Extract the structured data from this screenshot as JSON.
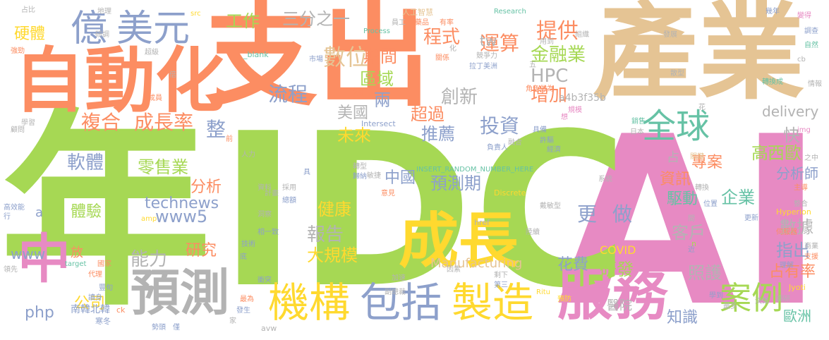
{
  "palette": {
    "orange": "#fc8d62",
    "green": "#a6d854",
    "pink": "#e78ac3",
    "tan": "#e5c494",
    "yellow": "#ffd92f",
    "blue": "#8da0cb",
    "teal": "#66c2a5",
    "gray": "#b3b3b3"
  },
  "words": [
    {
      "text": "支出",
      "color": "#fc8d62"
    },
    {
      "text": "AI",
      "color": "#e78ac3"
    },
    {
      "text": "IDC",
      "color": "#a6d854"
    },
    {
      "text": "年",
      "color": "#a6d854"
    },
    {
      "text": "產業",
      "color": "#e5c494"
    },
    {
      "text": "自動化",
      "color": "#fc8d62"
    },
    {
      "text": "成長",
      "color": "#ffd92f"
    },
    {
      "text": "服務",
      "color": "#e78ac3"
    },
    {
      "text": "預測",
      "color": "#b3b3b3"
    },
    {
      "text": "億",
      "color": "#8da0cb"
    },
    {
      "text": "美元",
      "color": "#8da0cb"
    },
    {
      "text": "中",
      "color": "#e78ac3"
    },
    {
      "text": "機構",
      "color": "#ffd92f"
    },
    {
      "text": "包括",
      "color": "#8da0cb"
    },
    {
      "text": "製造",
      "color": "#ffd92f"
    },
    {
      "text": "全球",
      "color": "#66c2a5"
    },
    {
      "text": "案例",
      "color": "#a6d854"
    },
    {
      "text": "成長率",
      "color": "#fc8d62"
    },
    {
      "text": "複合",
      "color": "#fc8d62"
    },
    {
      "text": "數位",
      "color": "#e5c494"
    },
    {
      "text": "流程",
      "color": "#8da0cb"
    },
    {
      "text": "提供",
      "color": "#fc8d62"
    },
    {
      "text": "運算",
      "color": "#fc8d62"
    },
    {
      "text": "金融業",
      "color": "#a6d854"
    },
    {
      "text": "HPC",
      "color": "#b3b3b3"
    },
    {
      "text": "增加",
      "color": "#fc8d62"
    },
    {
      "text": "期間",
      "color": "#fc8d62"
    },
    {
      "text": "程式",
      "color": "#fc8d62"
    },
    {
      "text": "區域",
      "color": "#a6d854"
    },
    {
      "text": "工作",
      "color": "#a6d854"
    },
    {
      "text": "三分之一",
      "color": "#b3b3b3"
    },
    {
      "text": "tw",
      "color": "#b3b3b3"
    },
    {
      "text": "硬體",
      "color": "#ffd92f"
    },
    {
      "text": "創新",
      "color": "#b3b3b3"
    },
    {
      "text": "超過",
      "color": "#fc8d62"
    },
    {
      "text": "推薦",
      "color": "#8da0cb"
    },
    {
      "text": "投資",
      "color": "#8da0cb"
    },
    {
      "text": "未來",
      "color": "#ffd92f"
    },
    {
      "text": "美國",
      "color": "#b3b3b3"
    },
    {
      "text": "兩",
      "color": "#8da0cb"
    },
    {
      "text": "整",
      "color": "#8da0cb"
    },
    {
      "text": "軟體",
      "color": "#8da0cb"
    },
    {
      "text": "零售業",
      "color": "#a6d854"
    },
    {
      "text": "中國",
      "color": "#8da0cb"
    },
    {
      "text": "預測期",
      "color": "#8da0cb"
    },
    {
      "text": "分析",
      "color": "#fc8d62"
    },
    {
      "text": "technews",
      "color": "#8da0cb"
    },
    {
      "text": "www5",
      "color": "#8da0cb"
    },
    {
      "text": "體驗",
      "color": "#a6d854"
    },
    {
      "text": "健康",
      "color": "#ffd92f"
    },
    {
      "text": "報告",
      "color": "#b3b3b3"
    },
    {
      "text": "能力",
      "color": "#b3b3b3"
    },
    {
      "text": "大規模",
      "color": "#ffd92f"
    },
    {
      "text": "研究",
      "color": "#fc8d62"
    },
    {
      "text": "www",
      "color": "#8da0cb"
    },
    {
      "text": "php",
      "color": "#8da0cb"
    },
    {
      "text": "公司",
      "color": "#ffd92f"
    },
    {
      "text": "放",
      "color": "#fc8d62"
    },
    {
      "text": "Manufacturing",
      "color": "#e5c494"
    },
    {
      "text": "COVID",
      "color": "#ffd92f"
    },
    {
      "text": "花費",
      "color": "#8da0cb"
    },
    {
      "text": "研發",
      "color": "#a6d854"
    },
    {
      "text": "更",
      "color": "#8da0cb"
    },
    {
      "text": "做",
      "color": "#8da0cb"
    },
    {
      "text": "客戶",
      "color": "#b3b3b3"
    },
    {
      "text": "駆動",
      "color": "#66c2a5"
    },
    {
      "text": "資訊",
      "color": "#fc8d62"
    },
    {
      "text": "企業",
      "color": "#66c2a5"
    },
    {
      "text": "數據",
      "color": "#b3b3b3"
    },
    {
      "text": "指出",
      "color": "#8da0cb"
    },
    {
      "text": "占有率",
      "color": "#fc8d62"
    },
    {
      "text": "照護",
      "color": "#b3b3b3"
    },
    {
      "text": "知識",
      "color": "#8da0cb"
    },
    {
      "text": "醫院",
      "color": "#b3b3b3"
    },
    {
      "text": "歐洲",
      "color": "#66c2a5"
    },
    {
      "text": "高",
      "color": "#a6d854"
    },
    {
      "text": "西歐",
      "color": "#a6d854"
    },
    {
      "text": "專案",
      "color": "#fc8d62"
    },
    {
      "text": "分析師",
      "color": "#8da0cb"
    },
    {
      "text": "快",
      "color": "#b3b3b3"
    },
    {
      "text": "delivery",
      "color": "#b3b3b3"
    },
    {
      "text": "占",
      "color": "#b3b3b3"
    },
    {
      "text": "a",
      "color": "#8da0cb"
    },
    {
      "text": "南韓北韓",
      "color": "#8da0cb"
    },
    {
      "text": "a4b3f35b",
      "color": "#b3b3b3"
    },
    {
      "text": "INSERT_RANDOM_NUMBER_HERE",
      "color": "#66c2a5"
    },
    {
      "text": "_blank",
      "color": "#66c2a5"
    },
    {
      "text": "Research",
      "color": "#66c2a5"
    },
    {
      "text": "人工智慧",
      "color": "#e5c494"
    },
    {
      "text": "Process",
      "color": "#66c2a5"
    },
    {
      "text": "研調",
      "color": "#b3b3b3"
    },
    {
      "text": "Intersect",
      "color": "#8da0cb"
    },
    {
      "text": "Discrete",
      "color": "#ffd92f"
    },
    {
      "text": "href",
      "color": "#b3b3b3"
    },
    {
      "text": "Hyperion",
      "color": "#ffd92f"
    },
    {
      "text": "Jyoti",
      "color": "#ffd92f"
    },
    {
      "text": "Ritu",
      "color": "#ffd92f"
    },
    {
      "text": "img",
      "color": "#e78ac3"
    },
    {
      "text": "cb",
      "color": "#b3b3b3"
    },
    {
      "text": "target",
      "color": "#66c2a5"
    },
    {
      "text": "amp",
      "color": "#ffd92f"
    },
    {
      "text": "avw",
      "color": "#b3b3b3"
    },
    {
      "text": "src",
      "color": "#ffd92f"
    },
    {
      "text": "ck",
      "color": "#fc8d62"
    },
    {
      "text": "n",
      "color": "#a6d854"
    },
    {
      "text": "占比",
      "color": "#b3b3b3"
    },
    {
      "text": "地理",
      "color": "#b3b3b3"
    },
    {
      "text": "強勁",
      "color": "#fc8d62"
    },
    {
      "text": "超級",
      "color": "#b3b3b3"
    },
    {
      "text": "倍",
      "color": "#b3b3b3"
    },
    {
      "text": "成員",
      "color": "#fc8d62"
    },
    {
      "text": "學習",
      "color": "#b3b3b3"
    },
    {
      "text": "顧問",
      "color": "#b3b3b3"
    },
    {
      "text": "高效能",
      "color": "#8da0cb"
    },
    {
      "text": "行",
      "color": "#8da0cb"
    },
    {
      "text": "領先",
      "color": "#b3b3b3"
    },
    {
      "text": "代理",
      "color": "#fc8d62"
    },
    {
      "text": "寒冬",
      "color": "#8da0cb"
    },
    {
      "text": "勢頭",
      "color": "#8da0cb"
    },
    {
      "text": "僅",
      "color": "#8da0cb"
    },
    {
      "text": "市場",
      "color": "#8da0cb"
    },
    {
      "text": "員工",
      "color": "#b3b3b3"
    },
    {
      "text": "有率",
      "color": "#fc8d62"
    },
    {
      "text": "藥品",
      "color": "#fc8d62"
    },
    {
      "text": "競爭力",
      "color": "#b3b3b3"
    },
    {
      "text": "關係",
      "color": "#fc8d62"
    },
    {
      "text": "拉丁美洲",
      "color": "#8da0cb"
    },
    {
      "text": "化",
      "color": "#b3b3b3"
    },
    {
      "text": "用到",
      "color": "#b3b3b3"
    },
    {
      "text": "組織",
      "color": "#b3b3b3"
    },
    {
      "text": "幾年",
      "color": "#8da0cb"
    },
    {
      "text": "變得",
      "color": "#e78ac3"
    },
    {
      "text": "調查",
      "color": "#8da0cb"
    },
    {
      "text": "自然",
      "color": "#66c2a5"
    },
    {
      "text": "發展",
      "color": "#b3b3b3"
    },
    {
      "text": "轉換成",
      "color": "#66c2a5"
    },
    {
      "text": "情報",
      "color": "#b3b3b3"
    },
    {
      "text": "散型",
      "color": "#b3b3b3"
    },
    {
      "text": "角色",
      "color": "#fc8d62"
    },
    {
      "text": "做為",
      "color": "#fc8d62"
    },
    {
      "text": "規模",
      "color": "#e78ac3"
    },
    {
      "text": "想",
      "color": "#e78ac3"
    },
    {
      "text": "花",
      "color": "#b3b3b3"
    },
    {
      "text": "銷售",
      "color": "#66c2a5"
    },
    {
      "text": "日本",
      "color": "#b3b3b3"
    },
    {
      "text": "具備",
      "color": "#8da0cb"
    },
    {
      "text": "許驅",
      "color": "#8da0cb"
    },
    {
      "text": "經濟",
      "color": "#8da0cb"
    },
    {
      "text": "關鍵",
      "color": "#e5c494"
    },
    {
      "text": "之中",
      "color": "#b3b3b3"
    },
    {
      "text": "主導",
      "color": "#fc8d62"
    },
    {
      "text": "整合",
      "color": "#b3b3b3"
    },
    {
      "text": "系統",
      "color": "#b3b3b3"
    },
    {
      "text": "轉換",
      "color": "#b3b3b3"
    },
    {
      "text": "位置",
      "color": "#8da0cb"
    },
    {
      "text": "更新",
      "color": "#8da0cb"
    },
    {
      "text": "伺服器",
      "color": "#fc8d62"
    },
    {
      "text": "近",
      "color": "#8da0cb"
    },
    {
      "text": "商業",
      "color": "#b3b3b3"
    },
    {
      "text": "支援",
      "color": "#fc8d62"
    },
    {
      "text": "理解",
      "color": "#8da0cb"
    },
    {
      "text": "學到",
      "color": "#8da0cb"
    },
    {
      "text": "調研",
      "color": "#b3b3b3"
    },
    {
      "text": "最多",
      "color": "#b3b3b3"
    },
    {
      "text": "決策",
      "color": "#b3b3b3"
    },
    {
      "text": "預防",
      "color": "#ffd92f"
    },
    {
      "text": "第三",
      "color": "#8da0cb"
    },
    {
      "text": "剩下",
      "color": "#b3b3b3"
    },
    {
      "text": "陸續",
      "color": "#b3b3b3"
    },
    {
      "text": "戴敏型",
      "color": "#b3b3b3"
    },
    {
      "text": "融合",
      "color": "#b3b3b3"
    },
    {
      "text": "負責人",
      "color": "#8da0cb"
    },
    {
      "text": "敏捷",
      "color": "#b3b3b3"
    },
    {
      "text": "轉型",
      "color": "#b3b3b3"
    },
    {
      "text": "歸納",
      "color": "#8da0cb"
    },
    {
      "text": "意見",
      "color": "#fc8d62"
    },
    {
      "text": "因素",
      "color": "#b3b3b3"
    },
    {
      "text": "加速",
      "color": "#b3b3b3"
    },
    {
      "text": "副總裁",
      "color": "#b3b3b3"
    },
    {
      "text": "相一致",
      "color": "#8da0cb"
    },
    {
      "text": "洞察",
      "color": "#b3b3b3"
    },
    {
      "text": "計畫",
      "color": "#b3b3b3"
    },
    {
      "text": "採用",
      "color": "#b3b3b3"
    },
    {
      "text": "資料",
      "color": "#b3b3b3"
    },
    {
      "text": "總額",
      "color": "#8da0cb"
    },
    {
      "text": "具",
      "color": "#8da0cb"
    },
    {
      "text": "人力",
      "color": "#b3b3b3"
    },
    {
      "text": "前",
      "color": "#fc8d62"
    },
    {
      "text": "之間",
      "color": "#fc8d62"
    },
    {
      "text": "技術",
      "color": "#8da0cb"
    },
    {
      "text": "底",
      "color": "#8da0cb"
    },
    {
      "text": "衝突",
      "color": "#8da0cb"
    },
    {
      "text": "最為",
      "color": "#fc8d62"
    },
    {
      "text": "發生",
      "color": "#8da0cb"
    },
    {
      "text": "家",
      "color": "#b3b3b3"
    },
    {
      "text": "國家",
      "color": "#fc8d62"
    },
    {
      "text": "豐",
      "color": "#8da0cb"
    },
    {
      "text": "讀身",
      "color": "#8da0cb"
    },
    {
      "text": "旬",
      "color": "#8da0cb"
    },
    {
      "text": "五",
      "color": "#b3b3b3"
    },
    {
      "text": "間",
      "color": "#b3b3b3"
    }
  ]
}
